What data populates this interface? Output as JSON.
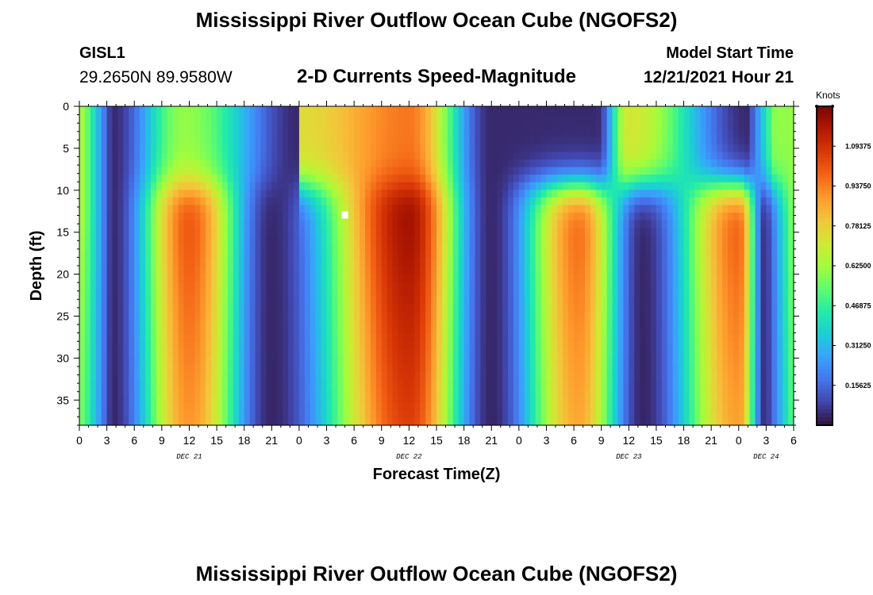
{
  "page": {
    "title": "Mississippi River Outflow Ocean Cube (NGOFS2)",
    "station": "GISL1",
    "coords": "29.2650N  89.9580W",
    "subtitle": "2-D Currents Speed-Magnitude",
    "start_label": "Model Start Time",
    "start_value": "12/21/2021 Hour 21"
  },
  "chart_data": {
    "type": "heatmap",
    "title": "2-D Currents Speed-Magnitude",
    "xlabel": "Forecast Time(Z)",
    "ylabel": "Depth (ft)",
    "x_tick_labels": [
      "0",
      "3",
      "6",
      "9",
      "12",
      "15",
      "18",
      "21",
      "0",
      "3",
      "6",
      "9",
      "12",
      "15",
      "18",
      "21",
      "0",
      "3",
      "6",
      "9",
      "12",
      "15",
      "18",
      "21",
      "0",
      "3",
      "6"
    ],
    "x_date_labels": [
      {
        "label": "DEC 21",
        "hour": 12
      },
      {
        "label": "DEC 22",
        "hour": 36
      },
      {
        "label": "DEC 23",
        "hour": 60
      },
      {
        "label": "DEC 24",
        "hour": 75
      }
    ],
    "x_range_hours": [
      0,
      78
    ],
    "y_ticks": [
      0,
      5,
      10,
      15,
      20,
      25,
      30,
      35
    ],
    "y_range": [
      0,
      38
    ],
    "y_inverted": true,
    "colorbar": {
      "unit": "Knots",
      "range": [
        0,
        1.25
      ],
      "ticks": [
        {
          "value": 0.15625,
          "label": "0.15625"
        },
        {
          "value": 0.3125,
          "label": "0.31250"
        },
        {
          "value": 0.46875,
          "label": "0.46875"
        },
        {
          "value": 0.625,
          "label": "0.62500"
        },
        {
          "value": 0.78125,
          "label": "0.78125"
        },
        {
          "value": 0.9375,
          "label": "0.93750"
        },
        {
          "value": 1.09375,
          "label": "1.09375"
        }
      ],
      "colors": [
        "#30123b",
        "#4145ab",
        "#4675ed",
        "#39a2fc",
        "#1bcfd4",
        "#24eca6",
        "#61fc6c",
        "#a4fc3b",
        "#d1e834",
        "#f3c63a",
        "#fe9b2d",
        "#f36315",
        "#d93806",
        "#b11901",
        "#7a0403"
      ]
    },
    "speed_profile": {
      "surface_peaks": [
        {
          "hour": 11.5,
          "speed": 0.6
        },
        {
          "hour": 24,
          "speed": 0.75
        },
        {
          "hour": 36,
          "speed": 0.95
        },
        {
          "hour": 60,
          "speed": 0.72
        }
      ],
      "deep_peaks": [
        {
          "hour": 12,
          "speed": 1.02
        },
        {
          "hour": 36,
          "speed": 1.2
        },
        {
          "hour": 54.5,
          "speed": 0.98
        },
        {
          "hour": 72,
          "speed": 1.0
        }
      ],
      "surface_slack_hours": [
        3.5,
        24,
        45,
        56.5,
        73
      ],
      "deep_slack_hours": [
        3.5,
        21,
        45,
        61.5,
        75
      ],
      "max_marker": {
        "hour": 29,
        "depth": 13
      }
    }
  }
}
